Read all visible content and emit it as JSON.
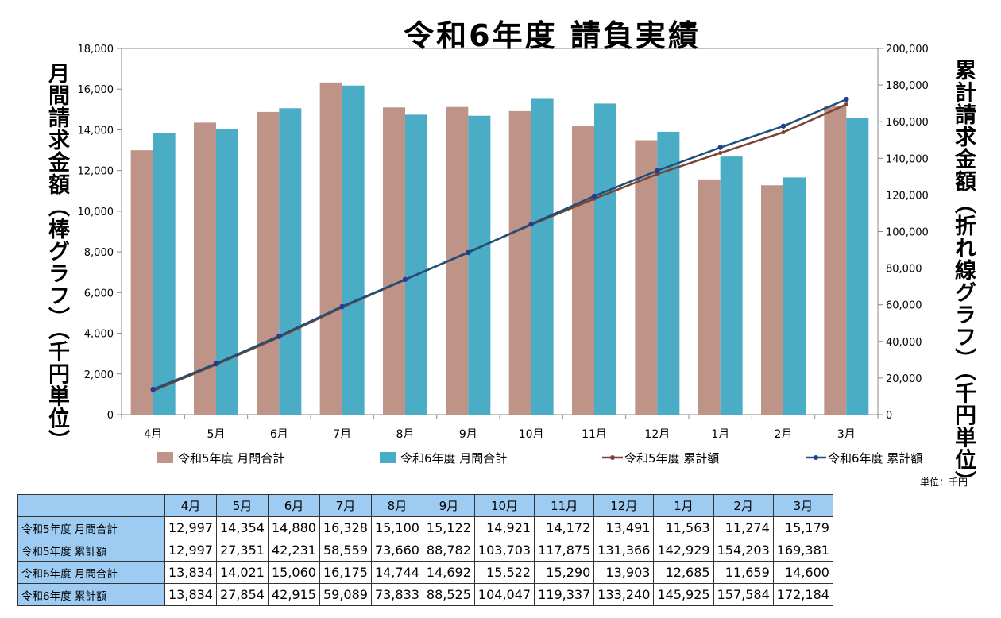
{
  "colors": {
    "bar_r5": "#bf9488",
    "bar_r6": "#4bacc6",
    "line_r5": "#7b4432",
    "line_r6": "#1f4e79",
    "marker": "#1f3d99",
    "table_header": "#9ecbf2"
  },
  "unit_label": "単位：千円",
  "table": {
    "columns": [
      "4月",
      "5月",
      "6月",
      "7月",
      "8月",
      "9月",
      "10月",
      "11月",
      "12月",
      "1月",
      "2月",
      "3月"
    ],
    "rows": [
      {
        "label": "令和5年度 月間合計",
        "values": [
          "12,997",
          "14,354",
          "14,880",
          "16,328",
          "15,100",
          "15,122",
          "14,921",
          "14,172",
          "13,491",
          "11,563",
          "11,274",
          "15,179"
        ]
      },
      {
        "label": "令和5年度 累計額",
        "values": [
          "12,997",
          "27,351",
          "42,231",
          "58,559",
          "73,660",
          "88,782",
          "103,703",
          "117,875",
          "131,366",
          "142,929",
          "154,203",
          "169,381"
        ]
      },
      {
        "label": "令和6年度 月間合計",
        "values": [
          "13,834",
          "14,021",
          "15,060",
          "16,175",
          "14,744",
          "14,692",
          "15,522",
          "15,290",
          "13,903",
          "12,685",
          "11,659",
          "14,600"
        ]
      },
      {
        "label": "令和6年度 累計額",
        "values": [
          "13,834",
          "27,854",
          "42,915",
          "59,089",
          "73,833",
          "88,525",
          "104,047",
          "119,337",
          "133,240",
          "145,925",
          "157,584",
          "172,184"
        ]
      }
    ]
  },
  "chart_data": {
    "type": "bar",
    "title": "令和6年度 請負実績",
    "ylabel": "月間請求金額（棒グラフ）（千円単位）",
    "y2label": "累計請求金額（折れ線グラフ）（千円単位）",
    "xlabel": "",
    "categories": [
      "4月",
      "5月",
      "6月",
      "7月",
      "8月",
      "9月",
      "10月",
      "11月",
      "12月",
      "1月",
      "2月",
      "3月"
    ],
    "ylim": [
      0,
      18000
    ],
    "yticks": [
      "0",
      "2,000",
      "4,000",
      "6,000",
      "8,000",
      "10,000",
      "12,000",
      "14,000",
      "16,000",
      "18,000"
    ],
    "y2lim": [
      0,
      200000
    ],
    "y2ticks": [
      "0",
      "20,000",
      "40,000",
      "60,000",
      "80,000",
      "100,000",
      "120,000",
      "140,000",
      "160,000",
      "180,000",
      "200,000"
    ],
    "grid": false,
    "legend_position": "bottom",
    "series": [
      {
        "name": "令和5年度 月間合計",
        "kind": "bar",
        "axis": "left",
        "values": [
          12997,
          14354,
          14880,
          16328,
          15100,
          15122,
          14921,
          14172,
          13491,
          11563,
          11274,
          15179
        ]
      },
      {
        "name": "令和6年度 月間合計",
        "kind": "bar",
        "axis": "left",
        "values": [
          13834,
          14021,
          15060,
          16175,
          14744,
          14692,
          15522,
          15290,
          13903,
          12685,
          11659,
          14600
        ]
      },
      {
        "name": "令和5年度 累計額",
        "kind": "line",
        "axis": "right",
        "values": [
          12997,
          27351,
          42231,
          58559,
          73660,
          88782,
          103703,
          117875,
          131366,
          142929,
          154203,
          169381
        ]
      },
      {
        "name": "令和6年度 累計額",
        "kind": "line",
        "axis": "right",
        "values": [
          13834,
          27854,
          42915,
          59089,
          73833,
          88525,
          104047,
          119337,
          133240,
          145925,
          157584,
          172184
        ]
      }
    ]
  }
}
